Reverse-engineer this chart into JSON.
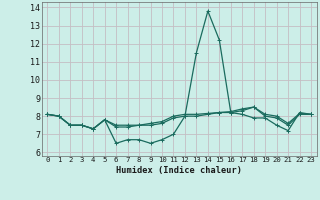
{
  "xlabel": "Humidex (Indice chaleur)",
  "xlim": [
    -0.5,
    23.5
  ],
  "ylim": [
    5.8,
    14.3
  ],
  "yticks": [
    6,
    7,
    8,
    9,
    10,
    11,
    12,
    13,
    14
  ],
  "xticks": [
    0,
    1,
    2,
    3,
    4,
    5,
    6,
    7,
    8,
    9,
    10,
    11,
    12,
    13,
    14,
    15,
    16,
    17,
    18,
    19,
    20,
    21,
    22,
    23
  ],
  "bg_color": "#cceee8",
  "grid_color": "#c4bec4",
  "line_color": "#1a6b5e",
  "series1": [
    8.1,
    8.0,
    7.5,
    7.5,
    7.3,
    7.8,
    6.5,
    6.7,
    6.7,
    6.5,
    6.7,
    7.0,
    8.0,
    11.5,
    13.8,
    12.2,
    8.2,
    8.1,
    7.9,
    7.9,
    7.5,
    7.2,
    8.2,
    8.1
  ],
  "series2": [
    8.1,
    8.0,
    7.5,
    7.5,
    7.3,
    7.8,
    7.4,
    7.4,
    7.5,
    7.5,
    7.6,
    7.9,
    8.0,
    8.0,
    8.1,
    8.2,
    8.2,
    8.3,
    8.5,
    8.0,
    7.9,
    7.5,
    8.1,
    8.1
  ],
  "series3": [
    8.1,
    8.0,
    7.5,
    7.5,
    7.3,
    7.8,
    7.5,
    7.5,
    7.5,
    7.6,
    7.7,
    8.0,
    8.1,
    8.1,
    8.15,
    8.2,
    8.25,
    8.4,
    8.5,
    8.1,
    8.0,
    7.6,
    8.15,
    8.1
  ]
}
